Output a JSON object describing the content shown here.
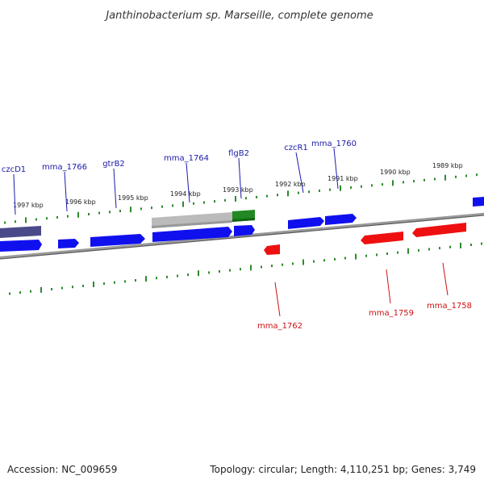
{
  "title": "Janthinobacterium sp. Marseille, complete genome",
  "accession": "Accession: NC_009659",
  "summary": "Topology: circular; Length: 4,110,251 bp; Genes: 3,749",
  "colors": {
    "backbone": "#888888",
    "tick": "#2e8b2e",
    "forward_gene": "#1010ee",
    "reverse_gene": "#ee1010",
    "forward_label": "#1a1aaa",
    "reverse_label": "#cc1111",
    "dim_gene": "#4a4a8a",
    "gray_feature": "#bbbbbb",
    "green_feature": "#228822"
  },
  "scale_labels": [
    "1997 kbp",
    "1996 kbp",
    "1995 kbp",
    "1994 kbp",
    "1993 kbp",
    "1992 kbp",
    "1991 kbp",
    "1990 kbp",
    "1989 kbp"
  ],
  "gene_labels": {
    "top": [
      "czcD1",
      "mma_1766",
      "gtrB2",
      "mma_1764",
      "flgB2",
      "czcR1",
      "mma_1760"
    ],
    "bottom": [
      "mma_1762",
      "mma_1759",
      "mma_1758"
    ]
  }
}
